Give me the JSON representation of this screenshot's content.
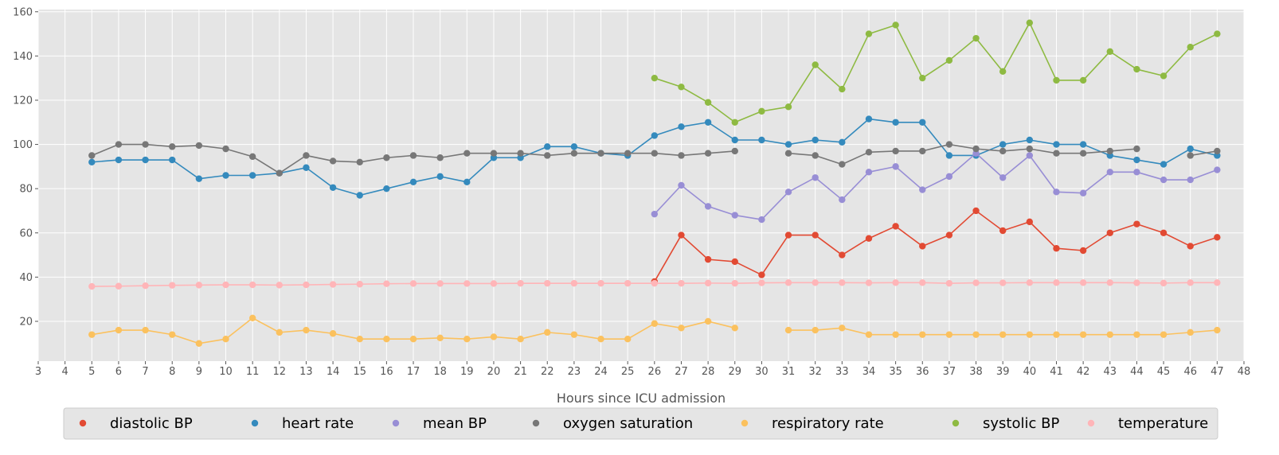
{
  "chart_data": {
    "type": "line",
    "title": "",
    "xlabel": "Hours since ICU admission",
    "ylabel": "",
    "xlim": [
      3,
      48
    ],
    "ylim": [
      2,
      161
    ],
    "xticks": [
      3,
      4,
      5,
      6,
      7,
      8,
      9,
      10,
      11,
      12,
      13,
      14,
      15,
      16,
      17,
      18,
      19,
      20,
      21,
      22,
      23,
      24,
      25,
      26,
      27,
      28,
      29,
      30,
      31,
      32,
      33,
      34,
      35,
      36,
      37,
      38,
      39,
      40,
      41,
      42,
      43,
      44,
      45,
      46,
      47,
      48
    ],
    "yticks": [
      20,
      40,
      60,
      80,
      100,
      120,
      140,
      160
    ],
    "grid": true,
    "legend_position": "bottom",
    "x": [
      5,
      6,
      7,
      8,
      9,
      10,
      11,
      12,
      13,
      14,
      15,
      16,
      17,
      18,
      19,
      20,
      21,
      22,
      23,
      24,
      25,
      26,
      27,
      28,
      29,
      30,
      31,
      32,
      33,
      34,
      35,
      36,
      37,
      38,
      39,
      40,
      41,
      42,
      43,
      44,
      45,
      46,
      47
    ],
    "series": [
      {
        "name": "diastolic BP",
        "color": "#E24A33",
        "values": [
          null,
          null,
          null,
          null,
          null,
          null,
          null,
          null,
          null,
          null,
          null,
          null,
          null,
          null,
          null,
          null,
          null,
          null,
          null,
          null,
          null,
          38,
          59,
          48,
          47,
          41,
          59,
          59,
          50,
          57.5,
          63,
          54,
          59,
          70,
          61,
          65,
          53,
          52,
          60,
          64,
          60,
          54,
          58
        ]
      },
      {
        "name": "heart rate",
        "color": "#348ABD",
        "values": [
          92,
          93,
          93,
          93,
          84.5,
          86,
          86,
          87,
          89.5,
          80.5,
          77,
          80,
          83,
          85.5,
          83,
          94,
          94,
          99,
          99,
          96,
          95,
          104,
          108,
          110,
          102,
          102,
          100,
          102,
          101,
          111.5,
          110,
          110,
          95,
          95,
          100,
          102,
          100,
          100,
          95,
          93,
          91,
          98,
          95
        ]
      },
      {
        "name": "mean BP",
        "color": "#988ED5",
        "values": [
          null,
          null,
          null,
          null,
          null,
          null,
          null,
          null,
          null,
          null,
          null,
          null,
          null,
          null,
          null,
          null,
          null,
          null,
          null,
          null,
          null,
          68.5,
          81.5,
          72,
          68,
          66,
          78.5,
          85,
          75,
          87.5,
          90,
          79.5,
          85.5,
          96,
          85,
          95,
          78.5,
          78,
          87.5,
          87.5,
          84,
          84,
          88.5
        ]
      },
      {
        "name": "oxygen saturation",
        "color": "#777777",
        "values": [
          95,
          100,
          100,
          99,
          99.5,
          98,
          94.5,
          87,
          95,
          92.5,
          92,
          94,
          95,
          94,
          96,
          96,
          96,
          95,
          96,
          96,
          96,
          96,
          95,
          96,
          97,
          null,
          96,
          95,
          91,
          96.5,
          97,
          97,
          100,
          98,
          97,
          98,
          96,
          96,
          97,
          98,
          null,
          95,
          97
        ]
      },
      {
        "name": "respiratory rate",
        "color": "#FBC15E",
        "values": [
          14,
          16,
          16,
          14,
          10,
          12,
          21.5,
          15,
          16,
          14.5,
          12,
          12,
          12,
          12.5,
          12,
          13,
          12,
          15,
          14,
          12,
          12,
          19,
          17,
          20,
          17,
          null,
          16,
          16,
          17,
          14,
          14,
          14,
          14,
          14,
          14,
          14,
          14,
          14,
          14,
          14,
          14,
          15,
          16
        ]
      },
      {
        "name": "systolic BP",
        "color": "#8EBA42",
        "values": [
          null,
          null,
          null,
          null,
          null,
          null,
          null,
          null,
          null,
          null,
          null,
          null,
          null,
          null,
          null,
          null,
          null,
          null,
          null,
          null,
          null,
          130,
          126,
          119,
          110,
          115,
          117,
          136,
          125,
          150,
          154,
          130,
          138,
          148,
          133,
          155,
          129,
          129,
          142,
          134,
          131,
          144,
          150
        ]
      },
      {
        "name": "temperature",
        "color": "#FFB5B8",
        "values": [
          35.8,
          35.9,
          36.1,
          36.3,
          36.4,
          36.5,
          36.5,
          36.4,
          36.5,
          36.7,
          36.8,
          37.0,
          37.1,
          37.1,
          37.1,
          37.1,
          37.2,
          37.2,
          37.2,
          37.2,
          37.2,
          37.2,
          37.2,
          37.3,
          37.2,
          37.4,
          37.5,
          37.5,
          37.5,
          37.4,
          37.5,
          37.5,
          37.2,
          37.4,
          37.4,
          37.5,
          37.5,
          37.5,
          37.5,
          37.4,
          37.3,
          37.5,
          37.5
        ]
      }
    ]
  }
}
